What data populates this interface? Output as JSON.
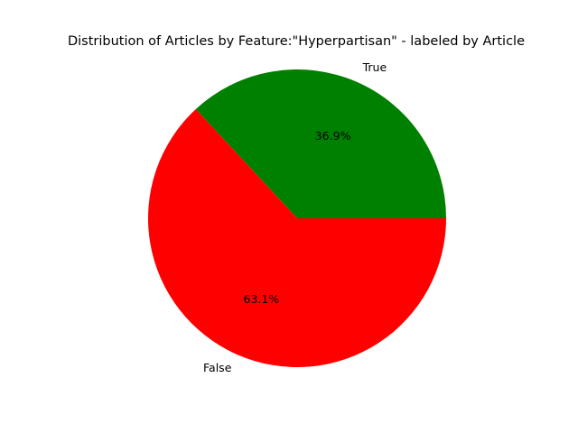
{
  "chart_data": {
    "type": "pie",
    "title": "Distribution of Articles by Feature:\"Hyperpartisan\" - labeled by Article",
    "labels": [
      "True",
      "False"
    ],
    "values": [
      36.9,
      63.1
    ],
    "percent_labels": [
      "36.9%",
      "63.1%"
    ],
    "colors": [
      "#008000",
      "#ff0000"
    ],
    "start_angle_deg": 0,
    "direction": "counterclockwise"
  }
}
